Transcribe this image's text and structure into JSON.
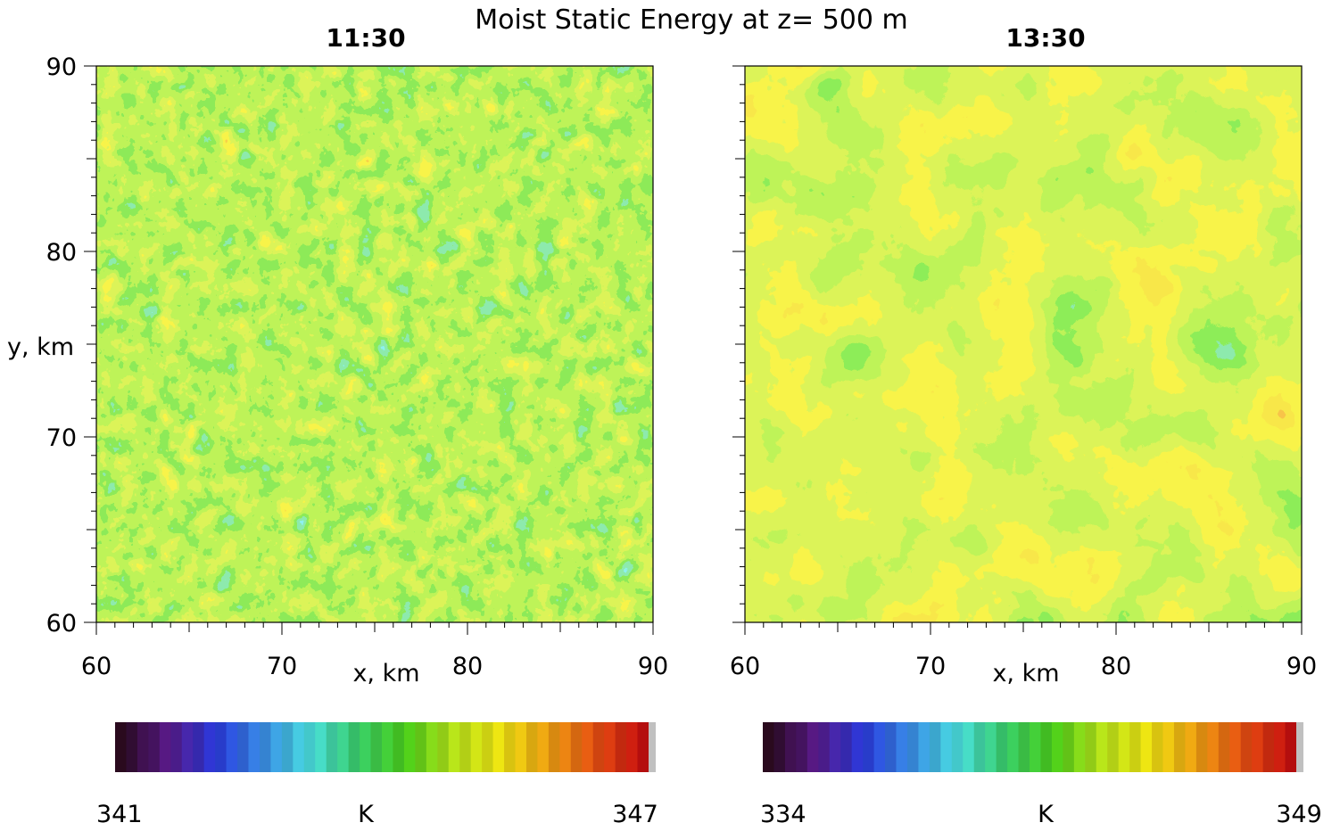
{
  "figure_title": "Moist Static Energy at z= 500 m",
  "chart_data": [
    {
      "type": "heatmap",
      "panel_title": "11:30",
      "xlabel": "x, km",
      "ylabel": "y, km",
      "xlim": [
        60,
        90
      ],
      "ylim": [
        60,
        90
      ],
      "xticks": [
        "60",
        "70",
        "80",
        "90"
      ],
      "yticks": [
        "60",
        "70",
        "80",
        "90"
      ],
      "colorbar": {
        "min_label": "341",
        "max_label": "347",
        "unit": "K",
        "vmin": 341,
        "vmax": 347
      },
      "field_description": "fine-scale cellular pattern, mostly green-yellow with scattered cyan/blue and orange/red patches"
    },
    {
      "type": "heatmap",
      "panel_title": "13:30",
      "xlabel": "x, km",
      "ylabel": "",
      "xlim": [
        60,
        90
      ],
      "ylim": [
        60,
        90
      ],
      "xticks": [
        "60",
        "70",
        "80",
        "90"
      ],
      "yticks": [],
      "colorbar": {
        "min_label": "334",
        "max_label": "349",
        "unit": "K",
        "vmin": 334,
        "vmax": 349
      },
      "field_description": "larger organized structures, yellow-green background with orange/red bands and a cyan/blue streak near lower center"
    }
  ],
  "colormap": [
    "#2a0a1e",
    "#5a1a8a",
    "#2a3adf",
    "#3a8fe8",
    "#4ae0e0",
    "#3ad06a",
    "#4ad01a",
    "#b8e61a",
    "#f0e612",
    "#f0a312",
    "#e85012",
    "#c81010",
    "#c0c0c0"
  ]
}
